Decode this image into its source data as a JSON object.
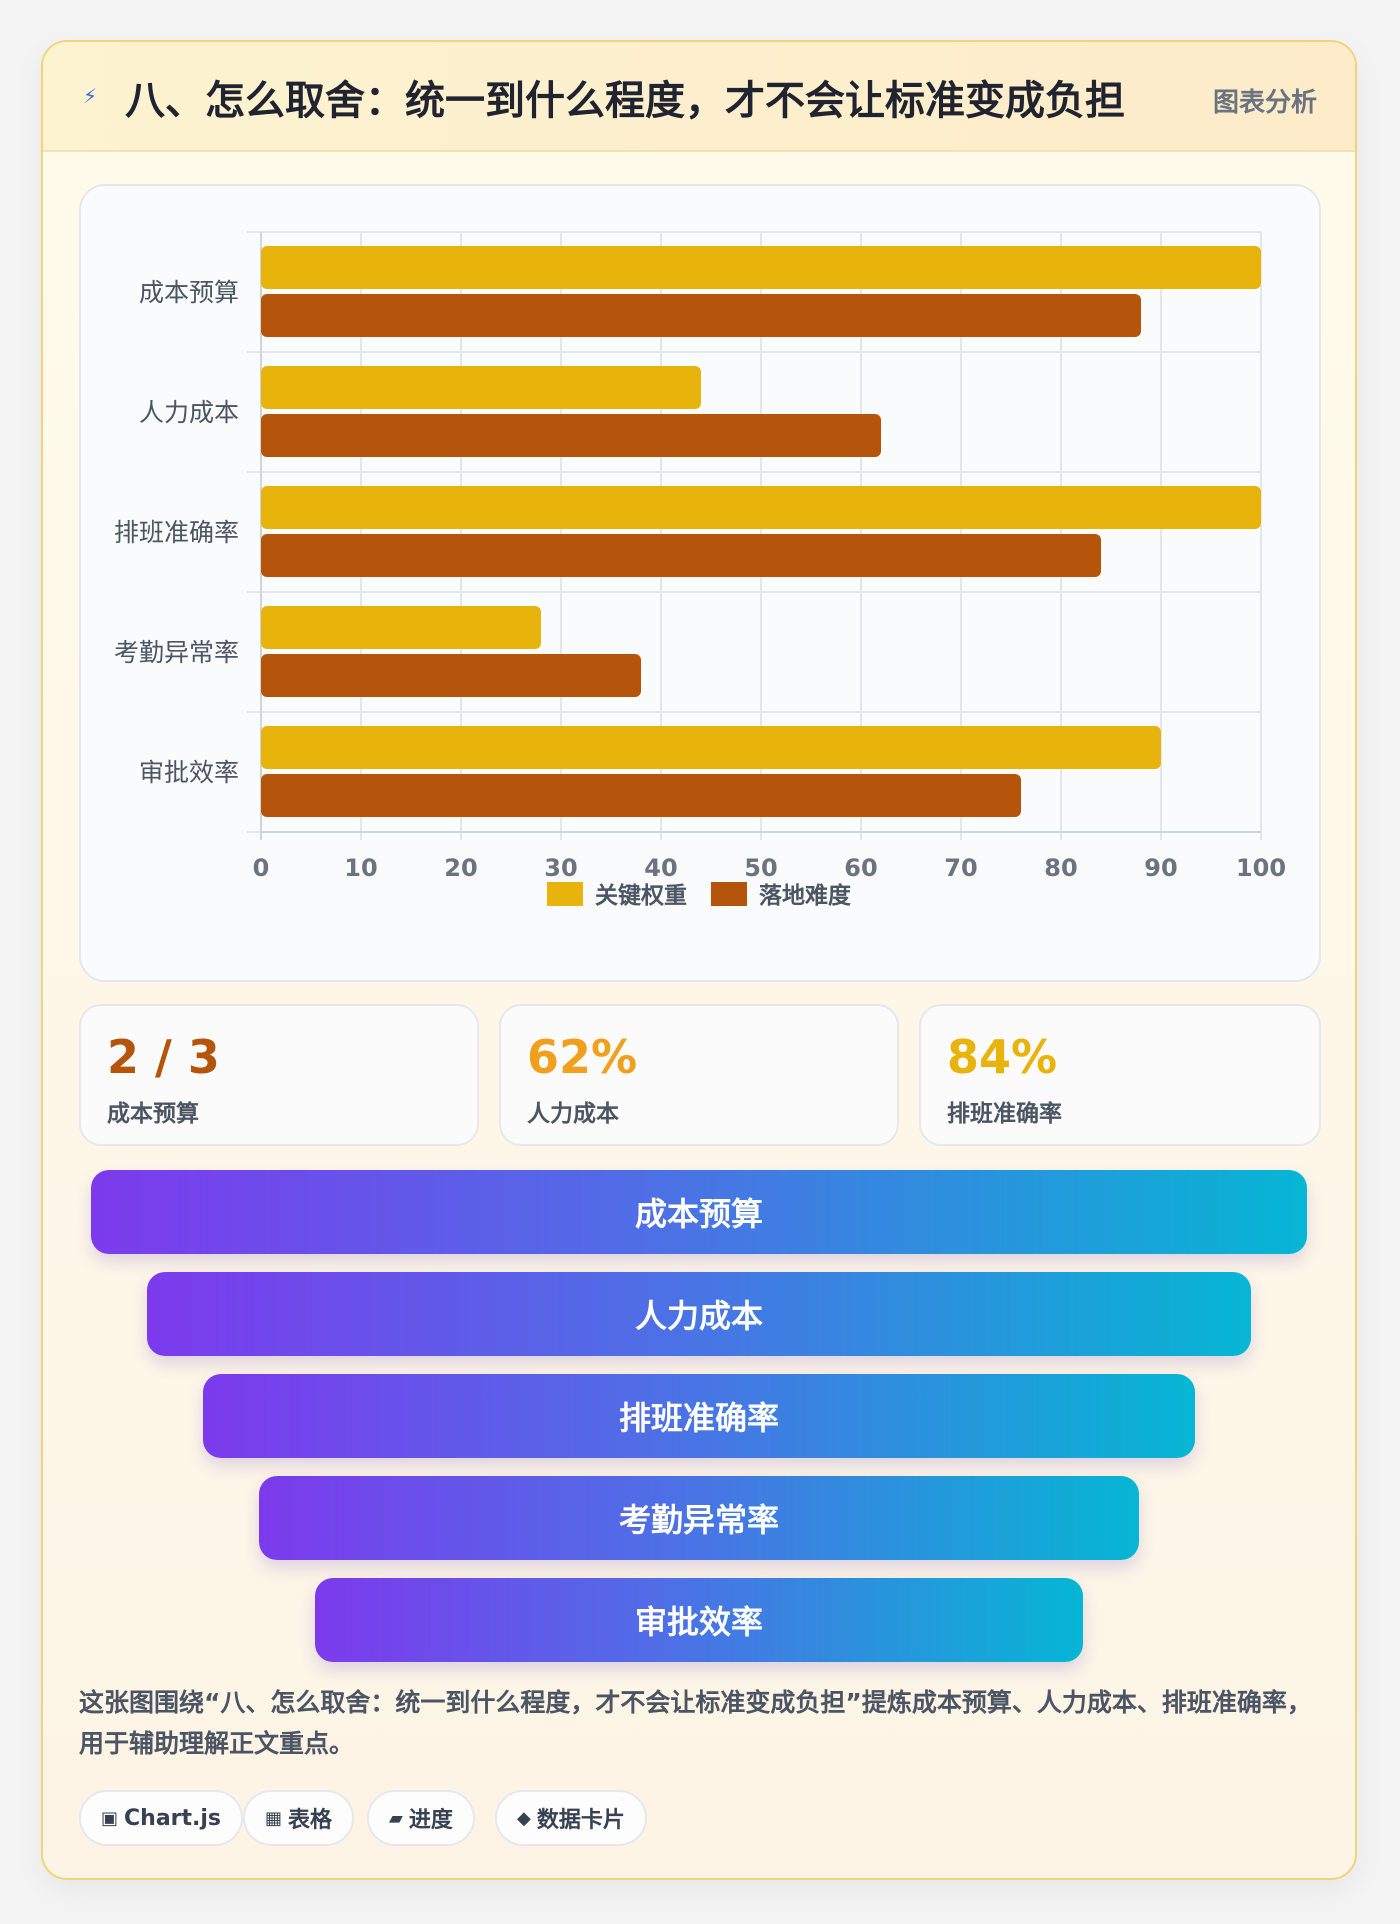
{
  "header": {
    "icon": "lightning-icon",
    "title": "八、怎么取舍：统一到什么程度，才不会让标准变成负担",
    "tag": "图表分析"
  },
  "chart_data": {
    "type": "bar",
    "orientation": "horizontal",
    "categories": [
      "成本预算",
      "人力成本",
      "排班准确率",
      "考勤异常率",
      "审批效率"
    ],
    "series": [
      {
        "name": "关键权重",
        "values": [
          100,
          44,
          100,
          28,
          90
        ],
        "color": "#e8b30a"
      },
      {
        "name": "落地难度",
        "values": [
          88,
          62,
          84,
          38,
          76
        ],
        "color": "#b5540b"
      }
    ],
    "xlim": [
      0,
      100
    ],
    "xticks": [
      0,
      10,
      20,
      30,
      40,
      50,
      60,
      70,
      80,
      90,
      100
    ],
    "grid": true,
    "legend": "bottom"
  },
  "stats": [
    {
      "value": "2 / 3",
      "label": "成本预算",
      "color": "#b5540b"
    },
    {
      "value": "62%",
      "label": "人力成本",
      "color": "#f0a01c"
    },
    {
      "value": "84%",
      "label": "排班准确率",
      "color": "#e8b30a"
    }
  ],
  "funnel": [
    "成本预算",
    "人力成本",
    "排班准确率",
    "考勤异常率",
    "审批效率"
  ],
  "description": "这张图围绕“八、怎么取舍：统一到什么程度，才不会让标准变成负担”提炼成本预算、人力成本、排班准确率，用于辅助理解正文重点。",
  "pills": [
    {
      "icon": "▣",
      "label": "Chart.js"
    },
    {
      "icon": "▦",
      "label": "表格"
    },
    {
      "icon": "▰",
      "label": "进度"
    },
    {
      "icon": "◆",
      "label": "数据卡片"
    }
  ]
}
